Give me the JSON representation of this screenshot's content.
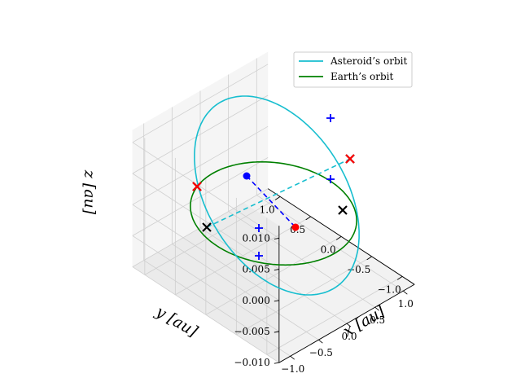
{
  "chart_data": {
    "type": "line",
    "projection": "3d",
    "legend_position": "top-right",
    "grid": true,
    "xlabel": "x [au]",
    "ylabel": "y [au]",
    "zlabel": "z [au]",
    "xlim": [
      -1.2,
      1.2
    ],
    "ylim": [
      -1.2,
      1.2
    ],
    "zlim": [
      -0.01,
      0.012
    ],
    "xticks": [
      "−1.0",
      "−0.5",
      "0.0",
      "0.5",
      "1.0"
    ],
    "yticks": [
      "1.0",
      "0.5",
      "0.0",
      "−0.5",
      "−1.0"
    ],
    "zticks": [
      "0.010",
      "0.005",
      "0.000",
      "−0.005",
      "−0.010"
    ],
    "colors": {
      "asteroid": "#17becf",
      "earth": "#008000",
      "marker_blue": "#0000ff",
      "marker_red": "#ff0000",
      "marker_black": "#000000"
    },
    "series": [
      {
        "name": "Asteroid’s orbit",
        "color": "#17becf"
      },
      {
        "name": "Earth’s orbit",
        "color": "#008000"
      }
    ]
  }
}
